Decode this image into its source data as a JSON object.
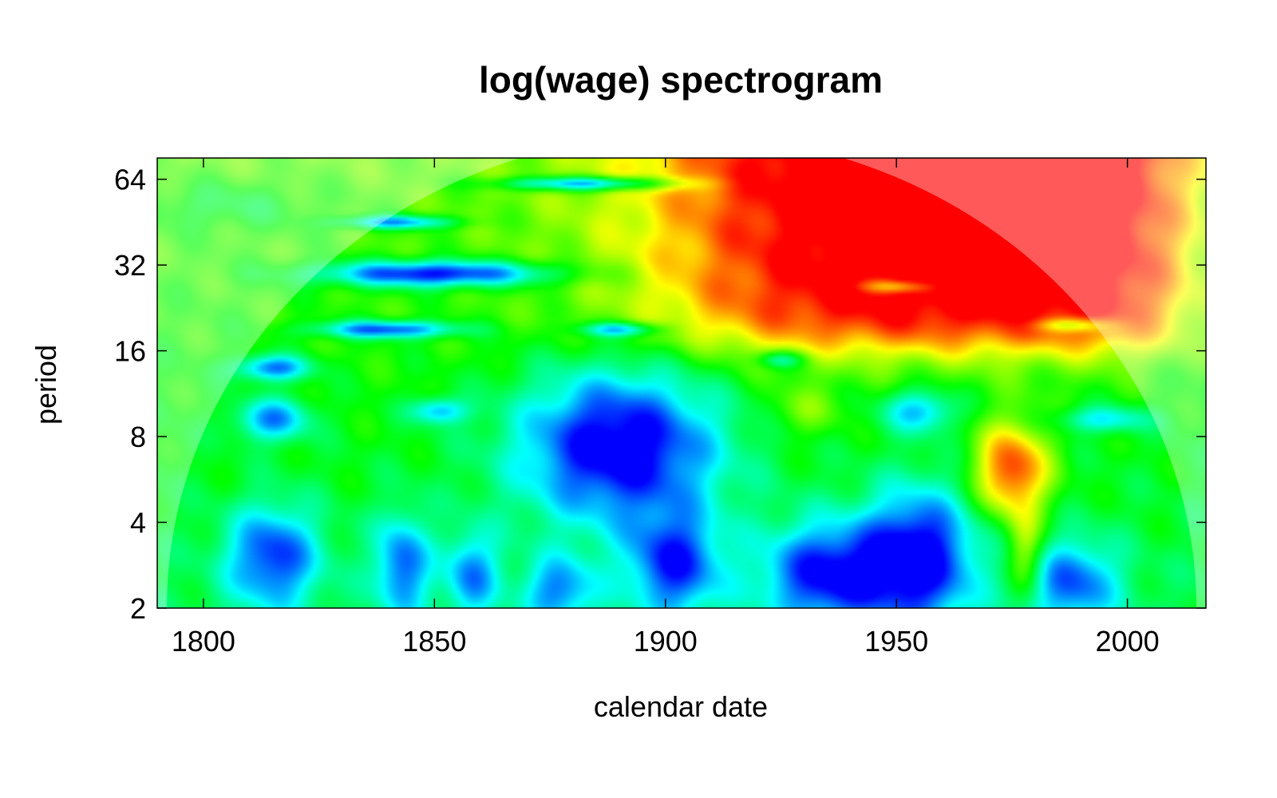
{
  "chart_data": {
    "type": "heatmap",
    "title": "log(wage) spectrogram",
    "xlabel": "calendar date",
    "ylabel": "period",
    "x_ticks": [
      1800,
      1850,
      1900,
      1950,
      2000
    ],
    "y_ticks": [
      2,
      4,
      8,
      16,
      32,
      64
    ],
    "y_scale": "log2",
    "xlim": [
      1790,
      2017
    ],
    "ylim": [
      2,
      76
    ],
    "colorscale": [
      "#0000ff",
      "#00ffff",
      "#00ff00",
      "#ffff00",
      "#ff0000"
    ],
    "cone_of_influence": true,
    "grid": false,
    "legend": "none",
    "high_power_regions": [
      {
        "x": [
          1880,
          2008
        ],
        "y": [
          14,
          76
        ],
        "level": 1.0
      },
      {
        "x": [
          1965,
          1995
        ],
        "y": [
          3,
          9
        ],
        "level": 0.95
      }
    ],
    "low_power_regions": [
      {
        "x": 1890,
        "y": 7,
        "level": 0.0
      },
      {
        "x": 1935,
        "y": 2.6,
        "level": 0.0
      },
      {
        "x": 1955,
        "y": 3.2,
        "level": 0.0
      },
      {
        "x": 1850,
        "y": 30,
        "level": 0.05
      },
      {
        "x": 1883,
        "y": 60,
        "level": 0.1
      }
    ]
  }
}
